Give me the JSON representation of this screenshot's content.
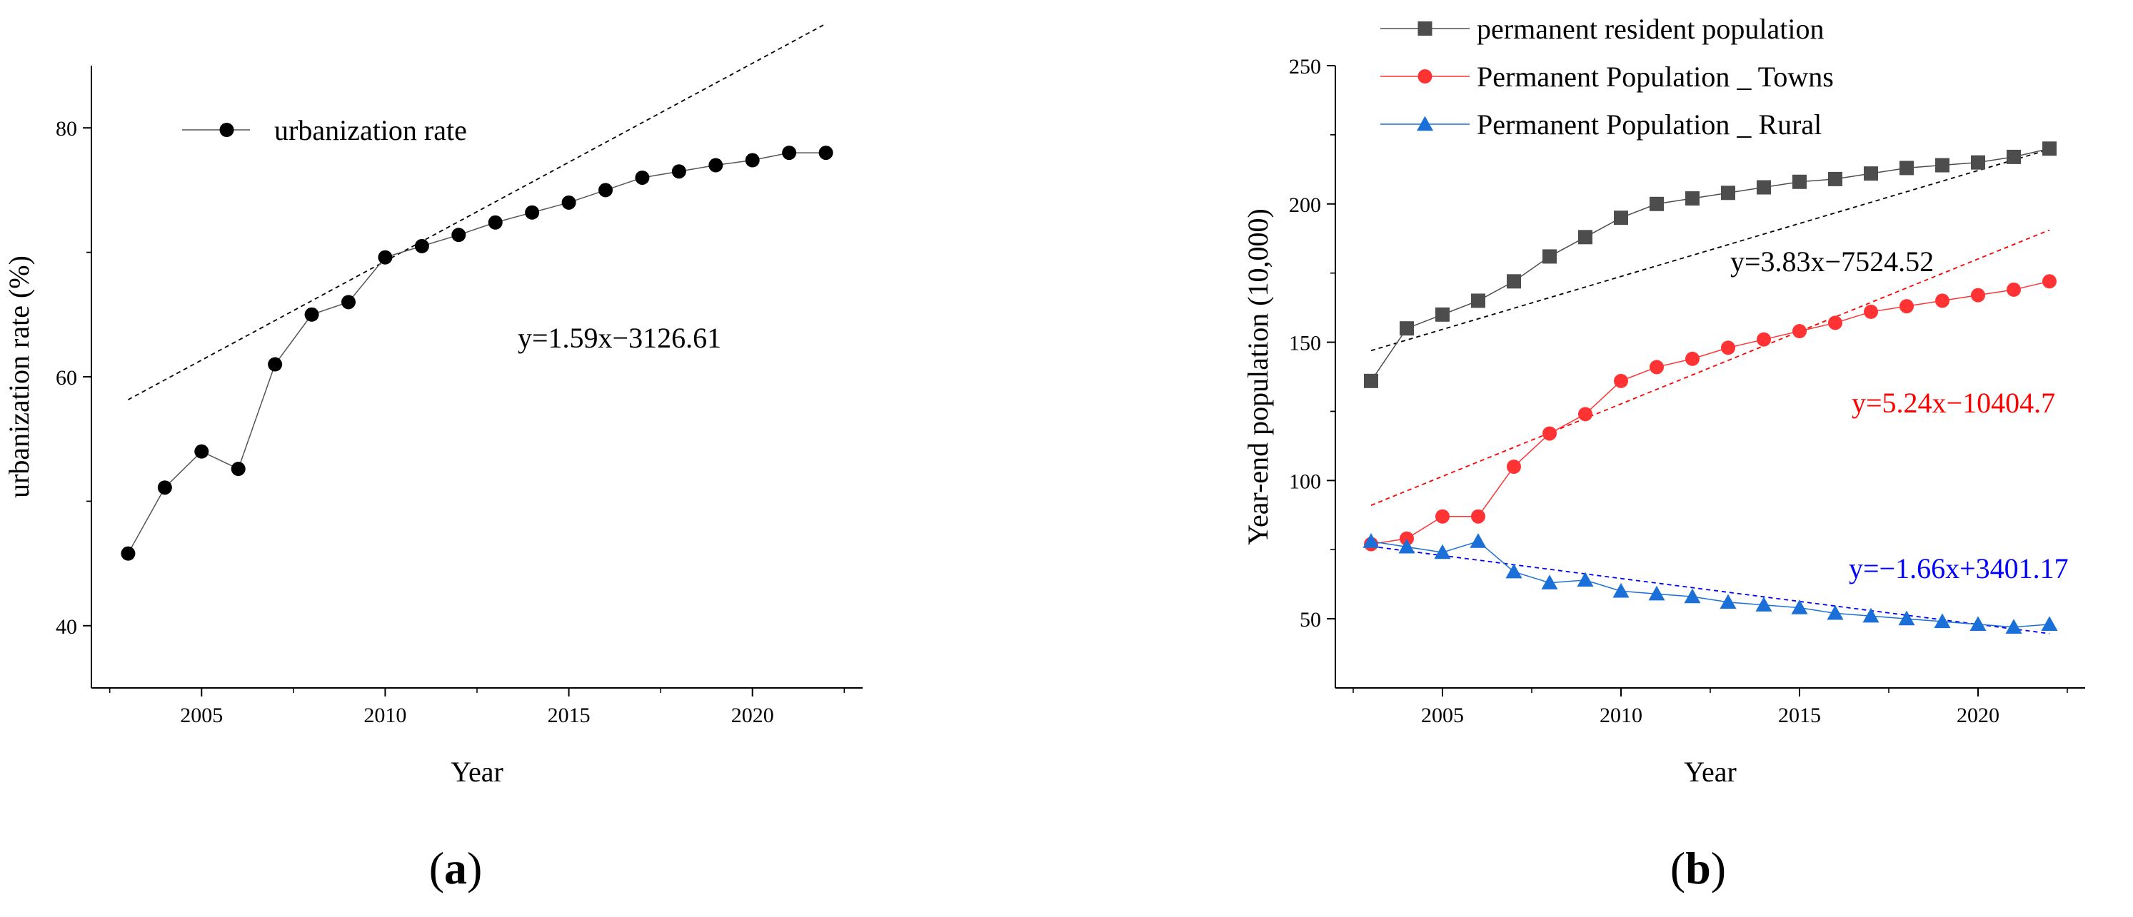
{
  "chart_data": [
    {
      "panel_label": "a",
      "type": "line",
      "xlabel": "Year",
      "ylabel": "urbanization rate (%)",
      "xlim": [
        2002,
        2023
      ],
      "ylim": [
        35,
        85
      ],
      "xticks": [
        "2005",
        "2010",
        "2015",
        "2020"
      ],
      "yticks": [
        "40",
        "60",
        "80"
      ],
      "x": [
        2003,
        2004,
        2005,
        2006,
        2007,
        2008,
        2009,
        2010,
        2011,
        2012,
        2013,
        2014,
        2015,
        2016,
        2017,
        2018,
        2019,
        2020,
        2021,
        2022
      ],
      "series": [
        {
          "name": "urbanization rate",
          "color": "#000000",
          "marker": "circle",
          "values": [
            45.8,
            51.1,
            54.0,
            52.6,
            61.0,
            65.0,
            66.0,
            69.6,
            70.5,
            71.4,
            72.4,
            73.2,
            74.0,
            75.0,
            76.0,
            76.5,
            77.0,
            77.4,
            78.0,
            78.0
          ]
        }
      ],
      "fits": [
        {
          "label": "y=1.59x−3126.61",
          "color": "#000000",
          "slope": 1.59,
          "intercept": -3126.61,
          "x_range": [
            2003,
            2022
          ]
        }
      ]
    },
    {
      "panel_label": "b",
      "type": "line",
      "xlabel": "Year",
      "ylabel": "Year-end population (10,000)",
      "xlim": [
        2002,
        2023
      ],
      "ylim": [
        25,
        250
      ],
      "xticks": [
        "2005",
        "2010",
        "2015",
        "2020"
      ],
      "yticks": [
        "50",
        "100",
        "150",
        "200",
        "250"
      ],
      "x": [
        2003,
        2004,
        2005,
        2006,
        2007,
        2008,
        2009,
        2010,
        2011,
        2012,
        2013,
        2014,
        2015,
        2016,
        2017,
        2018,
        2019,
        2020,
        2021,
        2022
      ],
      "series": [
        {
          "name": "permanent resident population",
          "color": "#4d4d4d",
          "marker": "square",
          "values": [
            136,
            155,
            160,
            165,
            172,
            181,
            188,
            195,
            200,
            202,
            204,
            206,
            208,
            209,
            211,
            213,
            214,
            215,
            217,
            220
          ]
        },
        {
          "name": "Permanent Population _ Towns",
          "color": "#ff3333",
          "marker": "circle",
          "values": [
            77,
            79,
            87,
            87,
            105,
            117,
            124,
            136,
            141,
            144,
            148,
            151,
            154,
            157,
            161,
            163,
            165,
            167,
            169,
            172
          ]
        },
        {
          "name": "Permanent Population _ Rural",
          "color": "#1a6fd8",
          "marker": "triangle",
          "values": [
            78,
            76,
            74,
            78,
            67,
            63,
            64,
            60,
            59,
            58,
            56,
            55,
            54,
            52,
            51,
            50,
            49,
            48,
            47,
            48
          ]
        }
      ],
      "fits": [
        {
          "label": "y=3.83x−7524.52",
          "color": "#000000",
          "slope": 3.83,
          "intercept": -7524.52,
          "x_range": [
            2003,
            2022
          ]
        },
        {
          "label": "y=5.24x−10404.7",
          "color": "#ff0000",
          "slope": 5.24,
          "intercept": -10404.7,
          "x_range": [
            2003,
            2022
          ]
        },
        {
          "label": "y=−1.66x+3401.17",
          "color": "#0000ff",
          "slope": -1.66,
          "intercept": 3401.17,
          "x_range": [
            2003,
            2022
          ]
        }
      ]
    }
  ]
}
